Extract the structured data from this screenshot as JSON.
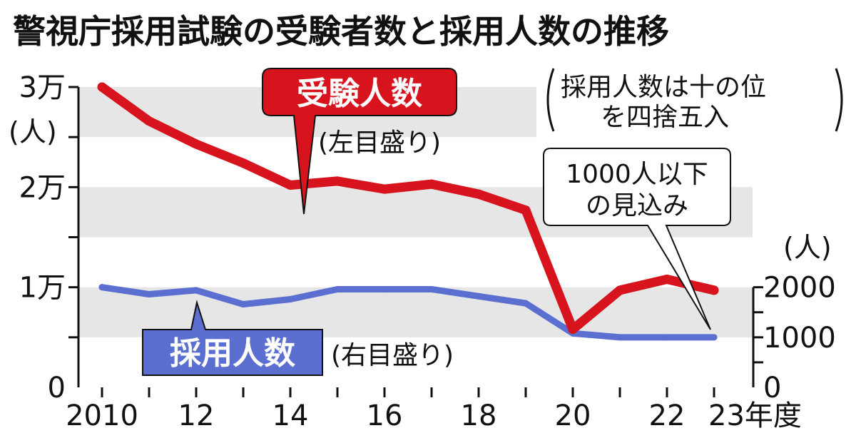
{
  "chart_data": {
    "type": "line",
    "title": "警視庁採用試験の受験者数と採用人数の推移",
    "x": [
      2010,
      2011,
      2012,
      2013,
      2014,
      2015,
      2016,
      2017,
      2018,
      2019,
      2020,
      2021,
      2022,
      2023
    ],
    "x_tick_labels": [
      "2010",
      "",
      "12",
      "",
      "14",
      "",
      "16",
      "",
      "18",
      "",
      "20",
      "",
      "22",
      "23年度"
    ],
    "left_axis": {
      "unit": "(人)",
      "ylim": [
        0,
        30000
      ],
      "ticks": [
        {
          "value": 0,
          "label": "0"
        },
        {
          "value": 10000,
          "label": "1万"
        },
        {
          "value": 20000,
          "label": "2万"
        },
        {
          "value": 30000,
          "label": "3万"
        }
      ]
    },
    "right_axis": {
      "unit": "(人)",
      "ylim": [
        0,
        2000
      ],
      "ticks": [
        {
          "value": 0,
          "label": "0"
        },
        {
          "value": 1000,
          "label": "1000"
        },
        {
          "value": 2000,
          "label": "2000"
        }
      ]
    },
    "series": [
      {
        "name": "受験人数",
        "axis_note": "(左目盛り)",
        "axis": "left",
        "color": "#d7141e",
        "values": [
          30000,
          26600,
          24300,
          22400,
          20200,
          20600,
          19800,
          20300,
          19300,
          17700,
          5800,
          9700,
          10800,
          9700
        ]
      },
      {
        "name": "採用人数",
        "axis_note": "(右目盛り)",
        "axis": "right",
        "color": "#5b6fd0",
        "values": [
          2000,
          1860,
          1940,
          1660,
          1760,
          1960,
          1960,
          1960,
          1820,
          1680,
          1080,
          1000,
          1000,
          1000
        ]
      }
    ],
    "notes": {
      "rounding": [
        "採用人数は十の位",
        "を四捨五入"
      ],
      "projection": [
        "1000人以下",
        "の見込み"
      ]
    },
    "grid": "alternating horizontal bands"
  },
  "colors": {
    "band": "#e6e6e6",
    "red": "#d7141e",
    "blue": "#5b6fd0"
  }
}
